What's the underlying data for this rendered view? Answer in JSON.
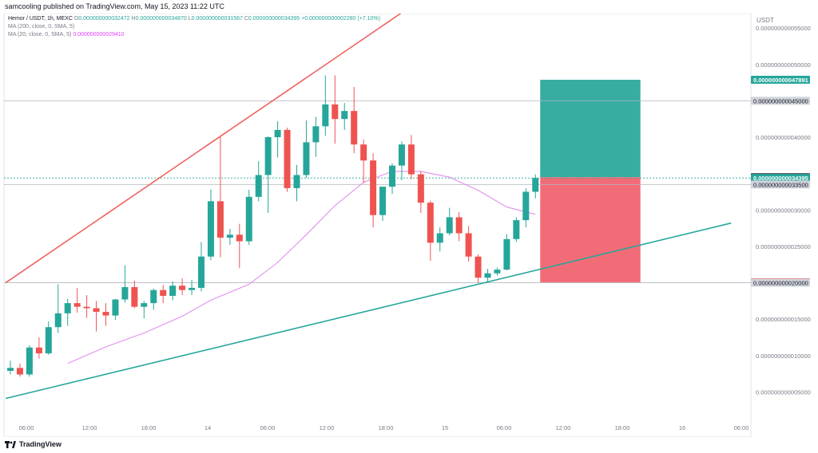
{
  "header": {
    "publish_line": "samcooling published on TradingView.com, May 15, 2023 11:22 UTC"
  },
  "legend": {
    "ticker": "Hemor / USDT, 1h, MEXC",
    "open_label": "O",
    "open": "0.000000000032472",
    "high_label": "H",
    "high": "0.000000000034870",
    "low_label": "L",
    "low": "0.000000000031567",
    "close_label": "C",
    "close": "0.000000000034395",
    "change": "+0.000000000002280 (+7.10%)",
    "ma200_label": "MA (200, close, 0, SMA, 5)",
    "ma20_label": "MA (20, close, 0, SMA, 5)",
    "ma20_value": "0.000000000029410"
  },
  "footer": {
    "brand": "TradingView"
  },
  "colors": {
    "up": "#26a69a",
    "down": "#ef5350",
    "ma20": "#e28ef0",
    "upper_trendline": "#f0625f",
    "lower_trendline": "#26a69a",
    "target_zone": "#26a69a",
    "stop_zone": "#f15f6b"
  },
  "chart_data": {
    "type": "candlestick",
    "title": "Hemor / USDT, 1h, MEXC",
    "ylabel": "USDT",
    "currency_label": "USDT",
    "ylim": [
      4.2e-12,
      5.7e-11
    ],
    "x_ticks": [
      "06:00",
      "12:00",
      "18:00",
      "14",
      "06:00",
      "12:00",
      "18:00",
      "15",
      "06:00",
      "12:00",
      "18:00",
      "16",
      "06:00"
    ],
    "y_ticks": [
      {
        "value": 5.5e-11,
        "label": "0.000000000055000"
      },
      {
        "value": 5e-11,
        "label": "0.000000000050000"
      },
      {
        "value": 4e-11,
        "label": "0.000000000040000"
      },
      {
        "value": 3e-11,
        "label": "0.000000000030000"
      },
      {
        "value": 2.5e-11,
        "label": "0.000000000025000"
      },
      {
        "value": 1.5e-11,
        "label": "0.000000000015000"
      },
      {
        "value": 1e-11,
        "label": "0.000000000010000"
      },
      {
        "value": 5e-12,
        "label": "0.000000000005000"
      }
    ],
    "price_labels": [
      {
        "value": 4.7891e-11,
        "label": "0.000000000047891",
        "style": "green"
      },
      {
        "value": 4.5e-11,
        "label": "0.000000000045000",
        "style": "grey"
      },
      {
        "value": 3.451e-11,
        "label": "0.000000000034510",
        "style": "dark"
      },
      {
        "value": 3.4395e-11,
        "label": "0.000000000034395",
        "style": "green"
      },
      {
        "value": 3.35e-11,
        "label": "0.000000000033500",
        "style": "grey"
      },
      {
        "value": 2.0066e-11,
        "label": "0.000000000020066",
        "style": "red"
      },
      {
        "value": 2e-11,
        "label": "0.000000000020000",
        "style": "grey"
      }
    ],
    "horizontal_lines": [
      4.5e-11,
      3.35e-11,
      2e-11
    ],
    "current_price": 3.4395e-11,
    "candles": [
      {
        "o": 7.9e-12,
        "h": 9.3e-12,
        "l": 7.4e-12,
        "c": 8.3e-12
      },
      {
        "o": 8.3e-12,
        "h": 8.9e-12,
        "l": 7.1e-12,
        "c": 7.4e-12
      },
      {
        "o": 7.4e-12,
        "h": 1.14e-11,
        "l": 7.1e-12,
        "c": 1.11e-11
      },
      {
        "o": 1.11e-11,
        "h": 1.25e-11,
        "l": 9.6e-12,
        "c": 1.03e-11
      },
      {
        "o": 1.03e-11,
        "h": 1.47e-11,
        "l": 1.01e-11,
        "c": 1.39e-11
      },
      {
        "o": 1.39e-11,
        "h": 1.98e-11,
        "l": 1.31e-11,
        "c": 1.58e-11
      },
      {
        "o": 1.58e-11,
        "h": 1.78e-11,
        "l": 1.41e-11,
        "c": 1.72e-11
      },
      {
        "o": 1.72e-11,
        "h": 1.93e-11,
        "l": 1.59e-11,
        "c": 1.67e-11
      },
      {
        "o": 1.67e-11,
        "h": 1.83e-11,
        "l": 1.52e-11,
        "c": 1.65e-11
      },
      {
        "o": 1.65e-11,
        "h": 1.75e-11,
        "l": 1.33e-11,
        "c": 1.6e-11
      },
      {
        "o": 1.6e-11,
        "h": 1.72e-11,
        "l": 1.41e-11,
        "c": 1.55e-11
      },
      {
        "o": 1.55e-11,
        "h": 1.78e-11,
        "l": 1.49e-11,
        "c": 1.77e-11
      },
      {
        "o": 1.77e-11,
        "h": 2.24e-11,
        "l": 1.73e-11,
        "c": 1.94e-11
      },
      {
        "o": 1.94e-11,
        "h": 2.03e-11,
        "l": 1.65e-11,
        "c": 1.67e-11
      },
      {
        "o": 1.67e-11,
        "h": 1.75e-11,
        "l": 1.51e-11,
        "c": 1.72e-11
      },
      {
        "o": 1.72e-11,
        "h": 1.92e-11,
        "l": 1.63e-11,
        "c": 1.9e-11
      },
      {
        "o": 1.9e-11,
        "h": 1.97e-11,
        "l": 1.72e-11,
        "c": 1.82e-11
      },
      {
        "o": 1.82e-11,
        "h": 2.02e-11,
        "l": 1.76e-11,
        "c": 1.96e-11
      },
      {
        "o": 1.96e-11,
        "h": 2.06e-11,
        "l": 1.83e-11,
        "c": 1.9e-11
      },
      {
        "o": 1.9e-11,
        "h": 2.04e-11,
        "l": 1.83e-11,
        "c": 1.93e-11
      },
      {
        "o": 1.93e-11,
        "h": 2.56e-11,
        "l": 1.88e-11,
        "c": 2.36e-11
      },
      {
        "o": 2.36e-11,
        "h": 3.28e-11,
        "l": 2.31e-11,
        "c": 3.12e-11
      },
      {
        "o": 3.12e-11,
        "h": 4e-11,
        "l": 2.35e-11,
        "c": 2.62e-11
      },
      {
        "o": 2.62e-11,
        "h": 2.74e-11,
        "l": 2.52e-11,
        "c": 2.66e-11
      },
      {
        "o": 2.66e-11,
        "h": 2.81e-11,
        "l": 2.2e-11,
        "c": 2.57e-11
      },
      {
        "o": 2.57e-11,
        "h": 3.28e-11,
        "l": 2.52e-11,
        "c": 3.18e-11
      },
      {
        "o": 3.18e-11,
        "h": 3.67e-11,
        "l": 3.12e-11,
        "c": 3.48e-11
      },
      {
        "o": 3.48e-11,
        "h": 4.01e-11,
        "l": 2.96e-11,
        "c": 4e-11
      },
      {
        "o": 4e-11,
        "h": 4.22e-11,
        "l": 3.72e-11,
        "c": 4.1e-11
      },
      {
        "o": 4.1e-11,
        "h": 4.13e-11,
        "l": 3.25e-11,
        "c": 3.3e-11
      },
      {
        "o": 3.3e-11,
        "h": 3.62e-11,
        "l": 3.12e-11,
        "c": 3.48e-11
      },
      {
        "o": 3.48e-11,
        "h": 4.23e-11,
        "l": 3.44e-11,
        "c": 3.93e-11
      },
      {
        "o": 3.93e-11,
        "h": 4.28e-11,
        "l": 3.73e-11,
        "c": 4.15e-11
      },
      {
        "o": 4.15e-11,
        "h": 4.85e-11,
        "l": 4.02e-11,
        "c": 4.45e-11
      },
      {
        "o": 4.45e-11,
        "h": 4.85e-11,
        "l": 3.91e-11,
        "c": 4.25e-11
      },
      {
        "o": 4.25e-11,
        "h": 4.47e-11,
        "l": 4.1e-11,
        "c": 4.36e-11
      },
      {
        "o": 4.36e-11,
        "h": 4.69e-11,
        "l": 3.78e-11,
        "c": 3.9e-11
      },
      {
        "o": 3.9e-11,
        "h": 3.97e-11,
        "l": 3.37e-11,
        "c": 3.68e-11
      },
      {
        "o": 3.68e-11,
        "h": 3.78e-11,
        "l": 2.76e-11,
        "c": 2.93e-11
      },
      {
        "o": 2.93e-11,
        "h": 3.32e-11,
        "l": 2.85e-11,
        "c": 3.32e-11
      },
      {
        "o": 3.32e-11,
        "h": 3.64e-11,
        "l": 3.22e-11,
        "c": 3.61e-11
      },
      {
        "o": 3.61e-11,
        "h": 3.94e-11,
        "l": 3.41e-11,
        "c": 3.9e-11
      },
      {
        "o": 3.9e-11,
        "h": 4.03e-11,
        "l": 3.42e-11,
        "c": 3.49e-11
      },
      {
        "o": 3.49e-11,
        "h": 3.53e-11,
        "l": 2.96e-11,
        "c": 3.1e-11
      },
      {
        "o": 3.1e-11,
        "h": 3.13e-11,
        "l": 2.3e-11,
        "c": 2.55e-11
      },
      {
        "o": 2.55e-11,
        "h": 2.76e-11,
        "l": 2.43e-11,
        "c": 2.68e-11
      },
      {
        "o": 2.68e-11,
        "h": 3.03e-11,
        "l": 2.65e-11,
        "c": 2.9e-11
      },
      {
        "o": 2.9e-11,
        "h": 2.97e-11,
        "l": 2.57e-11,
        "c": 2.68e-11
      },
      {
        "o": 2.68e-11,
        "h": 2.78e-11,
        "l": 2.29e-11,
        "c": 2.36e-11
      },
      {
        "o": 2.36e-11,
        "h": 2.39e-11,
        "l": 2e-11,
        "c": 2.07e-11
      },
      {
        "o": 2.07e-11,
        "h": 2.19e-11,
        "l": 2.02e-11,
        "c": 2.13e-11
      },
      {
        "o": 2.13e-11,
        "h": 2.21e-11,
        "l": 2.1e-11,
        "c": 2.18e-11
      },
      {
        "o": 2.18e-11,
        "h": 2.67e-11,
        "l": 2.17e-11,
        "c": 2.6e-11
      },
      {
        "o": 2.6e-11,
        "h": 2.9e-11,
        "l": 2.56e-11,
        "c": 2.86e-11
      },
      {
        "o": 2.86e-11,
        "h": 3.3e-11,
        "l": 2.76e-11,
        "c": 3.25e-11
      },
      {
        "o": 3.25e-11,
        "h": 3.49e-11,
        "l": 3.16e-11,
        "c": 3.4395e-11
      }
    ],
    "ma20": [
      {
        "i": 6,
        "v": 8.9e-12
      },
      {
        "i": 10,
        "v": 1.12e-11
      },
      {
        "i": 14,
        "v": 1.31e-11
      },
      {
        "i": 18,
        "v": 1.54e-11
      },
      {
        "i": 21,
        "v": 1.76e-11
      },
      {
        "i": 25,
        "v": 1.98e-11
      },
      {
        "i": 28,
        "v": 2.28e-11
      },
      {
        "i": 31,
        "v": 2.66e-11
      },
      {
        "i": 34,
        "v": 3.06e-11
      },
      {
        "i": 37,
        "v": 3.38e-11
      },
      {
        "i": 40,
        "v": 3.53e-11
      },
      {
        "i": 43,
        "v": 3.53e-11
      },
      {
        "i": 46,
        "v": 3.45e-11
      },
      {
        "i": 49,
        "v": 3.27e-11
      },
      {
        "i": 52,
        "v": 3.04e-11
      },
      {
        "i": 55,
        "v": 2.941e-11
      }
    ],
    "trendlines": [
      {
        "name": "upper",
        "from": {
          "i": -0.5,
          "v": 2e-11
        },
        "to": {
          "i": 42,
          "v": 5.8e-11
        }
      },
      {
        "name": "lower",
        "from": {
          "i": -0.5,
          "v": 4.1e-12
        },
        "to": {
          "i": 75.5,
          "v": 2.82e-11
        }
      }
    ],
    "position": {
      "entry": 3.451e-11,
      "target": 4.7891e-11,
      "stop": 2.0066e-11,
      "from_i": 55.5,
      "to_i": 66
    }
  }
}
